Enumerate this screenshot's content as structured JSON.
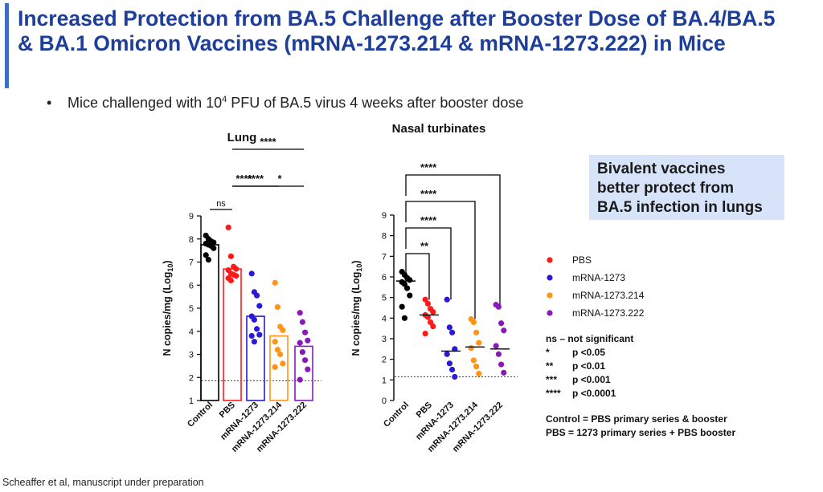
{
  "slide": {
    "title_line1": "Increased Protection from BA.5 Challenge after Booster Dose of BA.4/BA.5",
    "title_line2": "& BA.1 Omicron Vaccines (mRNA-1273.214 & mRNA-1273.222) in Mice",
    "bullet_symbol": "•",
    "bullet_pre": "Mice challenged with 10",
    "bullet_sup": "4",
    "bullet_post": " PFU of BA.5 virus 4 weeks after booster dose",
    "callout_line1": "Bivalent vaccines",
    "callout_line2": "better protect from",
    "callout_line3": "BA.5 infection in lungs",
    "citation": "Scheaffer et al, manuscript under preparation"
  },
  "colors": {
    "title": "#1d3f9a",
    "accent_bar": "#3d6cc8",
    "callout_bg": "#d6e3f8",
    "Control": "#000000",
    "PBS": "#ff1a1a",
    "mRNA-1273": "#2a1ad6",
    "mRNA-1273.214": "#ff9418",
    "mRNA-1273.222": "#8a1ab8"
  },
  "legend": {
    "items": [
      "PBS",
      "mRNA-1273",
      "mRNA-1273.214",
      "mRNA-1273.222"
    ],
    "sig": [
      {
        "sym": "ns – not significant",
        "text": ""
      },
      {
        "sym": "*",
        "text": "p <0.05"
      },
      {
        "sym": "**",
        "text": "p <0.01"
      },
      {
        "sym": "***",
        "text": "p <0.001"
      },
      {
        "sym": "****",
        "text": "p <0.0001"
      }
    ],
    "notes": [
      "Control = PBS primary series & booster",
      "PBS = 1273 primary series + PBS booster"
    ]
  },
  "chart_data": [
    {
      "type": "bar",
      "title": "Lung",
      "ylabel": "N copies/mg (Log10)",
      "ylim": [
        1,
        9
      ],
      "yticks": [
        1,
        2,
        3,
        4,
        5,
        6,
        7,
        8,
        9
      ],
      "limit_of_detection": 1.85,
      "categories": [
        "Control",
        "PBS",
        "mRNA-1273",
        "mRNA-1273.214",
        "mRNA-1273.222"
      ],
      "values": [
        7.75,
        6.7,
        4.65,
        3.8,
        3.35
      ],
      "points": [
        [
          8.15,
          8.0,
          7.9,
          7.85,
          7.8,
          7.75,
          7.7,
          7.6,
          7.3,
          7.1
        ],
        [
          8.5,
          7.25,
          6.8,
          6.7,
          6.65,
          6.5,
          6.45,
          6.4,
          6.3,
          6.2
        ],
        [
          6.5,
          5.7,
          5.55,
          5.1,
          4.65,
          4.5,
          4.1,
          3.85,
          3.8,
          3.55
        ],
        [
          6.1,
          5.05,
          4.2,
          4.05,
          3.55,
          3.2,
          3.0,
          2.6,
          2.45
        ],
        [
          4.8,
          4.4,
          3.95,
          3.6,
          3.5,
          3.1,
          2.75,
          2.35,
          1.9
        ]
      ],
      "brackets": [
        {
          "from": 0,
          "to": 1,
          "label": "ns"
        },
        {
          "from": 1,
          "to": 3,
          "label": "****"
        },
        {
          "from": 1,
          "to": 2,
          "label": "****"
        },
        {
          "from": 2,
          "to": 4,
          "label": "*"
        },
        {
          "from": 1,
          "to": 4,
          "label": "****"
        }
      ]
    },
    {
      "type": "scatter",
      "title": "Nasal turbinates",
      "ylabel": "N copies/mg (Log10)",
      "ylim": [
        0,
        9
      ],
      "yticks": [
        0,
        1,
        2,
        3,
        4,
        5,
        6,
        7,
        8,
        9
      ],
      "limit_of_detection": 1.15,
      "categories": [
        "Control",
        "PBS",
        "mRNA-1273",
        "mRNA-1273.214",
        "mRNA-1273.222"
      ],
      "means": [
        5.8,
        4.15,
        2.4,
        2.6,
        2.5
      ],
      "points": [
        [
          6.25,
          6.1,
          5.95,
          5.85,
          5.75,
          5.65,
          5.45,
          5.1,
          4.55,
          4.0
        ],
        [
          4.9,
          4.7,
          4.45,
          4.3,
          4.15,
          4.05,
          3.8,
          3.6,
          3.25
        ],
        [
          4.9,
          3.55,
          3.3,
          2.5,
          2.25,
          1.8,
          1.5,
          1.15
        ],
        [
          3.95,
          3.8,
          3.3,
          2.8,
          2.55,
          1.95,
          1.65,
          1.3
        ],
        [
          4.65,
          4.55,
          3.75,
          3.4,
          2.65,
          2.25,
          1.75,
          1.35
        ]
      ],
      "brackets": [
        {
          "from": 0,
          "to": 1,
          "label": "**"
        },
        {
          "from": 0,
          "to": 2,
          "label": "****"
        },
        {
          "from": 0,
          "to": 3,
          "label": "****"
        },
        {
          "from": 0,
          "to": 4,
          "label": "****"
        }
      ]
    }
  ]
}
